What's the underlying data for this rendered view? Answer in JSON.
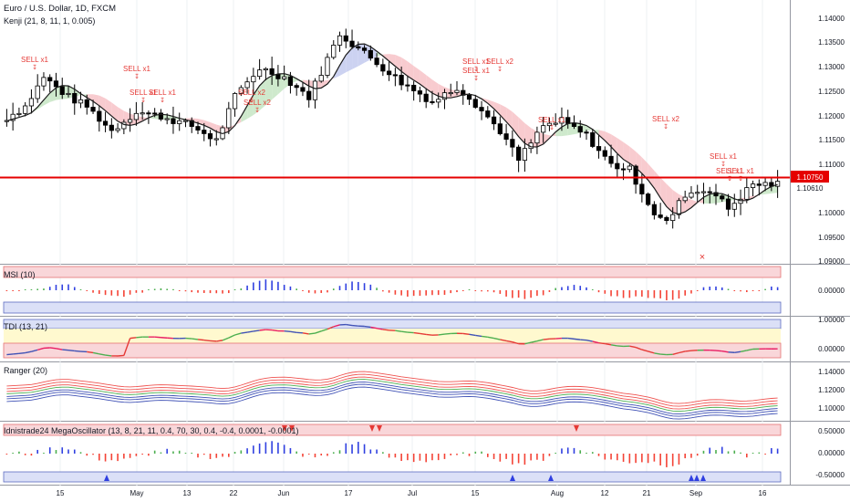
{
  "main": {
    "title": "Euro / U.S. Dollar, 1D, FXCM",
    "indicator": "Kenji (21, 8, 11, 1, 0.005)",
    "price_axis": [
      "1.14000",
      "1.13500",
      "1.13000",
      "1.12500",
      "1.12000",
      "1.11500",
      "1.11000",
      "1.10610",
      "1.10000",
      "1.09500",
      "1.09000"
    ],
    "horizontal_level": "1.10750",
    "last_price": "1.10610",
    "sell_labels": [
      "SELL x1",
      "SELL x1",
      "SELL x1",
      "SELL x1",
      "SELL x2",
      "SELL x2",
      "SELL x1",
      "SELL x1",
      "SELL x2",
      "SELL x1",
      "SELL x2",
      "SELL x1",
      "SELL x1",
      "SELL x1"
    ],
    "cross_marker": "×"
  },
  "panes": {
    "msi": {
      "label": "MSI (10)",
      "axis": [
        "0.00000"
      ]
    },
    "tdi": {
      "label": "TDI (13, 21)",
      "axis": [
        "1.00000",
        "0.00000"
      ]
    },
    "ranger": {
      "label": "Ranger (20)",
      "axis": [
        "1.14000",
        "1.12000",
        "1.10000"
      ]
    },
    "mega": {
      "label": "Idnistrade24 MegaOscillator (13, 8, 21, 11, 0.4, 70, 30, 0.4, -0.4, 0.0001, -0.0001)",
      "axis": [
        "0.50000",
        "0.00000",
        "-0.50000"
      ]
    }
  },
  "time_axis": [
    "15",
    "May",
    "13",
    "22",
    "Jun",
    "17",
    "Jul",
    "15",
    "Aug",
    "12",
    "21",
    "Sep",
    "16"
  ],
  "colors": {
    "up": "#ffffff",
    "down": "#000000",
    "bear_cloud": "#f7c5ca",
    "bull_cloud": "#c9e7c6",
    "blue_cloud": "#c7cdf0",
    "level": "#e50000",
    "sell": "#e53935",
    "bar_red": "#f44336",
    "bar_blue": "#3040e0",
    "bar_green": "#4caf50"
  }
}
